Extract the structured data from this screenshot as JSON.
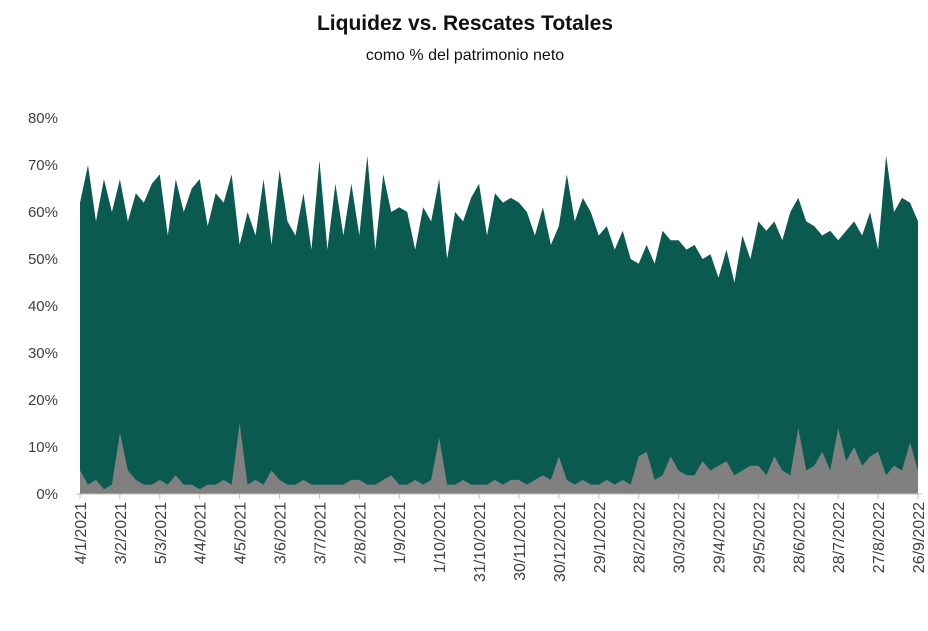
{
  "chart_data": {
    "type": "area",
    "title": "Liquidez vs. Rescates Totales",
    "subtitle": "como % del patrimonio neto",
    "categories": [
      "4/1/2021",
      null,
      null,
      null,
      null,
      "3/2/2021",
      null,
      null,
      null,
      null,
      "5/3/2021",
      null,
      null,
      null,
      null,
      "4/4/2021",
      null,
      null,
      null,
      null,
      "4/5/2021",
      null,
      null,
      null,
      null,
      "3/6/2021",
      null,
      null,
      null,
      null,
      "3/7/2021",
      null,
      null,
      null,
      null,
      "2/8/2021",
      null,
      null,
      null,
      null,
      "1/9/2021",
      null,
      null,
      null,
      null,
      "1/10/2021",
      null,
      null,
      null,
      null,
      "31/10/2021",
      null,
      null,
      null,
      null,
      "30/11/2021",
      null,
      null,
      null,
      null,
      "30/12/2021",
      null,
      null,
      null,
      null,
      "29/1/2022",
      null,
      null,
      null,
      null,
      "28/2/2022",
      null,
      null,
      null,
      null,
      "30/3/2022",
      null,
      null,
      null,
      null,
      "29/4/2022",
      null,
      null,
      null,
      null,
      "29/5/2022",
      null,
      null,
      null,
      null,
      "28/6/2022",
      null,
      null,
      null,
      null,
      "28/7/2022",
      null,
      null,
      null,
      null,
      "27/8/2022",
      null,
      null,
      null,
      null,
      "26/9/2022"
    ],
    "series": [
      {
        "color": "#0b5a4f",
        "values": [
          62,
          70,
          58,
          67,
          60,
          67,
          58,
          64,
          62,
          66,
          68,
          55,
          67,
          60,
          65,
          67,
          57,
          64,
          62,
          68,
          53,
          60,
          55,
          67,
          53,
          69,
          58,
          55,
          64,
          52,
          71,
          52,
          66,
          55,
          66,
          55,
          72,
          52,
          68,
          60,
          61,
          60,
          52,
          61,
          58,
          67,
          50,
          60,
          58,
          63,
          66,
          55,
          64,
          62,
          63,
          62,
          60,
          55,
          61,
          53,
          57,
          68,
          58,
          63,
          60,
          55,
          57,
          52,
          56,
          50,
          49,
          53,
          49,
          56,
          54,
          54,
          52,
          53,
          50,
          51,
          46,
          52,
          45,
          55,
          50,
          58,
          56,
          58,
          54,
          60,
          63,
          58,
          57,
          55,
          56,
          54,
          56,
          58,
          55,
          60,
          52,
          72,
          60,
          63,
          62,
          58
        ]
      },
      {
        "color": "#808080",
        "values": [
          5,
          2,
          3,
          1,
          2,
          13,
          5,
          3,
          2,
          2,
          3,
          2,
          4,
          2,
          2,
          1,
          2,
          2,
          3,
          2,
          15,
          2,
          3,
          2,
          5,
          3,
          2,
          2,
          3,
          2,
          2,
          2,
          2,
          2,
          3,
          3,
          2,
          2,
          3,
          4,
          2,
          2,
          3,
          2,
          3,
          12,
          2,
          2,
          3,
          2,
          2,
          2,
          3,
          2,
          3,
          3,
          2,
          3,
          4,
          3,
          8,
          3,
          2,
          3,
          2,
          2,
          3,
          2,
          3,
          2,
          8,
          9,
          3,
          4,
          8,
          5,
          4,
          4,
          7,
          5,
          6,
          7,
          4,
          5,
          6,
          6,
          4,
          8,
          5,
          4,
          14,
          5,
          6,
          9,
          5,
          14,
          7,
          10,
          6,
          8,
          9,
          4,
          6,
          5,
          11,
          5
        ]
      }
    ],
    "ylim": [
      0,
      80
    ],
    "yticks": [
      {
        "value": 0,
        "label": "0%"
      },
      {
        "value": 10,
        "label": "10%"
      },
      {
        "value": 20,
        "label": "20%"
      },
      {
        "value": 30,
        "label": "30%"
      },
      {
        "value": 40,
        "label": "40%"
      },
      {
        "value": 50,
        "label": "50%"
      },
      {
        "value": 60,
        "label": "60%"
      },
      {
        "value": 70,
        "label": "70%"
      },
      {
        "value": 80,
        "label": "80%"
      }
    ]
  }
}
